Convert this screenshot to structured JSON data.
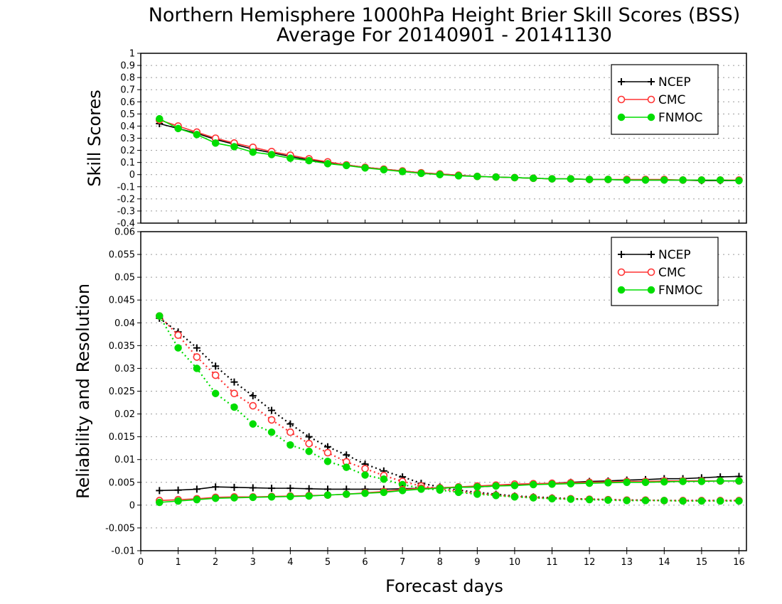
{
  "chart_data": {
    "title": "Northern Hemisphere 1000hPa Height Brier Skill Scores (BSS)",
    "subtitle": "Average For 20140901 - 20141130",
    "xlabel": "Forecast days",
    "xlim": [
      0,
      16.2
    ],
    "x_ticks": [
      "0",
      "1",
      "2",
      "3",
      "4",
      "5",
      "6",
      "7",
      "8",
      "9",
      "10",
      "11",
      "12",
      "13",
      "14",
      "15",
      "16"
    ],
    "x": [
      0.5,
      1,
      1.5,
      2,
      2.5,
      3,
      3.5,
      4,
      4.5,
      5,
      5.5,
      6,
      6.5,
      7,
      7.5,
      8,
      8.5,
      9,
      9.5,
      10,
      10.5,
      11,
      11.5,
      12,
      12.5,
      13,
      13.5,
      14,
      14.5,
      15,
      15.5,
      16
    ],
    "colors": {
      "NCEP": "#000000",
      "CMC": "#ff3333",
      "FNMOC": "#00dd00"
    },
    "panels": [
      {
        "type": "line",
        "ylabel": "Skill Scores",
        "ylim": [
          -0.4,
          1
        ],
        "y_ticks": [
          "-0.4",
          "-0.3",
          "-0.2",
          "-0.1",
          "0",
          "0.1",
          "0.2",
          "0.3",
          "0.4",
          "0.5",
          "0.6",
          "0.7",
          "0.8",
          "0.9",
          "1"
        ],
        "grid": true,
        "legend": {
          "position": "top-right",
          "entries": [
            "NCEP",
            "CMC",
            "FNMOC"
          ]
        },
        "series": [
          {
            "name": "NCEP",
            "marker": "plus",
            "line": "solid",
            "values": [
              0.42,
              0.38,
              0.34,
              0.29,
              0.25,
              0.21,
              0.18,
              0.15,
              0.12,
              0.1,
              0.08,
              0.06,
              0.045,
              0.03,
              0.015,
              0.005,
              -0.005,
              -0.015,
              -0.02,
              -0.025,
              -0.03,
              -0.035,
              -0.035,
              -0.04,
              -0.04,
              -0.045,
              -0.045,
              -0.045,
              -0.045,
              -0.05,
              -0.05,
              -0.05
            ]
          },
          {
            "name": "CMC",
            "marker": "open-circle",
            "line": "solid",
            "values": [
              0.45,
              0.4,
              0.35,
              0.3,
              0.26,
              0.225,
              0.19,
              0.16,
              0.13,
              0.105,
              0.08,
              0.06,
              0.045,
              0.03,
              0.015,
              0.005,
              -0.005,
              -0.015,
              -0.02,
              -0.025,
              -0.03,
              -0.035,
              -0.035,
              -0.04,
              -0.04,
              -0.04,
              -0.04,
              -0.04,
              -0.045,
              -0.045,
              -0.045,
              -0.045
            ]
          },
          {
            "name": "FNMOC",
            "marker": "filled-circle",
            "line": "solid",
            "values": [
              0.46,
              0.38,
              0.33,
              0.26,
              0.23,
              0.185,
              0.165,
              0.135,
              0.115,
              0.09,
              0.075,
              0.055,
              0.04,
              0.025,
              0.01,
              0.0,
              -0.01,
              -0.015,
              -0.02,
              -0.025,
              -0.03,
              -0.035,
              -0.035,
              -0.04,
              -0.04,
              -0.045,
              -0.045,
              -0.045,
              -0.045,
              -0.045,
              -0.045,
              -0.05
            ]
          }
        ]
      },
      {
        "type": "line",
        "ylabel": "Reliability and Resolution",
        "ylim": [
          -0.01,
          0.06
        ],
        "y_ticks": [
          "-0.01",
          "-0.005",
          "0",
          "0.005",
          "0.01",
          "0.015",
          "0.02",
          "0.025",
          "0.03",
          "0.035",
          "0.04",
          "0.045",
          "0.05",
          "0.055",
          "0.06"
        ],
        "grid": true,
        "legend": {
          "position": "top-right",
          "entries": [
            "NCEP",
            "CMC",
            "FNMOC"
          ]
        },
        "series": [
          {
            "name": "NCEP",
            "group": "resolution",
            "marker": "plus",
            "line": "dotted",
            "values": [
              0.041,
              0.038,
              0.0345,
              0.0305,
              0.027,
              0.024,
              0.0208,
              0.0178,
              0.015,
              0.0128,
              0.011,
              0.009,
              0.0075,
              0.0062,
              0.0048,
              0.004,
              0.0033,
              0.0028,
              0.0024,
              0.002,
              0.0018,
              0.0016,
              0.0014,
              0.0013,
              0.0012,
              0.0011,
              0.0011,
              0.001,
              0.001,
              0.001,
              0.001,
              0.001
            ]
          },
          {
            "name": "CMC",
            "group": "resolution",
            "marker": "open-circle",
            "line": "dotted",
            "values": [
              0.0415,
              0.0373,
              0.0325,
              0.0285,
              0.0245,
              0.0218,
              0.0187,
              0.016,
              0.0135,
              0.0115,
              0.0095,
              0.008,
              0.0065,
              0.0052,
              0.0042,
              0.0036,
              0.003,
              0.0026,
              0.0022,
              0.0019,
              0.0017,
              0.0015,
              0.0014,
              0.0013,
              0.0012,
              0.0011,
              0.0011,
              0.001,
              0.001,
              0.001,
              0.001,
              0.001
            ]
          },
          {
            "name": "FNMOC",
            "group": "resolution",
            "marker": "filled-circle",
            "line": "dotted",
            "values": [
              0.0415,
              0.0345,
              0.03,
              0.0245,
              0.0215,
              0.0178,
              0.016,
              0.0132,
              0.0118,
              0.0096,
              0.0083,
              0.0066,
              0.0057,
              0.0045,
              0.0037,
              0.0033,
              0.0028,
              0.0024,
              0.0021,
              0.0018,
              0.0016,
              0.0014,
              0.0013,
              0.0012,
              0.0011,
              0.001,
              0.001,
              0.001,
              0.0009,
              0.0009,
              0.0009,
              0.0009
            ]
          },
          {
            "name": "NCEP",
            "group": "reliability",
            "marker": "plus",
            "line": "solid",
            "values": [
              0.0032,
              0.0033,
              0.0035,
              0.004,
              0.0039,
              0.0038,
              0.0037,
              0.0037,
              0.0036,
              0.0035,
              0.0035,
              0.0035,
              0.0035,
              0.0036,
              0.0037,
              0.0038,
              0.0039,
              0.004,
              0.0042,
              0.0044,
              0.0046,
              0.0048,
              0.005,
              0.0052,
              0.0053,
              0.0055,
              0.0056,
              0.0058,
              0.0058,
              0.006,
              0.0062,
              0.0063
            ]
          },
          {
            "name": "CMC",
            "group": "reliability",
            "marker": "open-circle",
            "line": "solid",
            "values": [
              0.001,
              0.0012,
              0.0014,
              0.0017,
              0.0018,
              0.0018,
              0.0019,
              0.002,
              0.0021,
              0.0022,
              0.0024,
              0.0027,
              0.003,
              0.0034,
              0.0037,
              0.0038,
              0.004,
              0.0042,
              0.0044,
              0.0046,
              0.0047,
              0.0048,
              0.0049,
              0.005,
              0.0051,
              0.0052,
              0.0052,
              0.0053,
              0.0053,
              0.0053,
              0.0053,
              0.0053
            ]
          },
          {
            "name": "FNMOC",
            "group": "reliability",
            "marker": "filled-circle",
            "line": "solid",
            "values": [
              0.0006,
              0.0009,
              0.0012,
              0.0015,
              0.0016,
              0.0017,
              0.0018,
              0.0019,
              0.002,
              0.0022,
              0.0024,
              0.0026,
              0.0028,
              0.0032,
              0.0035,
              0.0037,
              0.0039,
              0.004,
              0.0042,
              0.0043,
              0.0045,
              0.0046,
              0.0047,
              0.0048,
              0.0049,
              0.005,
              0.005,
              0.0051,
              0.0052,
              0.0052,
              0.0053,
              0.0053
            ]
          }
        ]
      }
    ]
  }
}
